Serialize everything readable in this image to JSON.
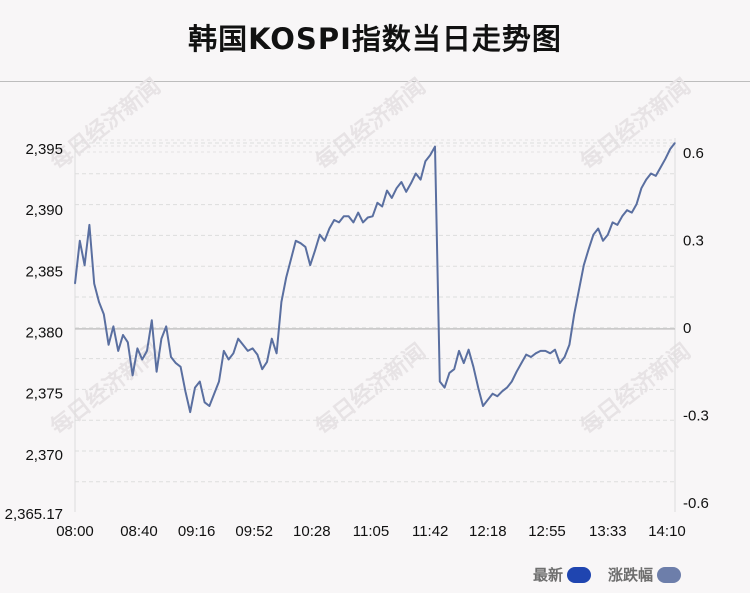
{
  "title": "韩国KOSPI指数当日走势图",
  "watermark": "每日经济新闻",
  "colors": {
    "line": "#5a6fa0",
    "latest_swatch": "#1f45b0",
    "change_swatch": "#6d7eaa",
    "grid": "#dddddd",
    "baseline": "#c4c4c4"
  },
  "legend": [
    {
      "label": "最新",
      "color": "#1f45b0"
    },
    {
      "label": "涨跌幅",
      "color": "#6d7eaa"
    }
  ],
  "chart_data": {
    "type": "line",
    "title": "韩国KOSPI指数当日走势图",
    "x_ticks": [
      "08:00",
      "08:40",
      "09:16",
      "09:52",
      "10:28",
      "11:05",
      "11:42",
      "12:18",
      "12:55",
      "13:33",
      "14:10"
    ],
    "y_ticks": [
      "2,365.17",
      "2,370",
      "2,375",
      "2,380",
      "2,385",
      "2,390",
      "2,395"
    ],
    "y_tick_values": [
      2365.17,
      2370,
      2375,
      2380,
      2385,
      2390,
      2395
    ],
    "y2_ticks": [
      "-0.6",
      "-0.3",
      "0",
      "0.3",
      "0.6"
    ],
    "y2_tick_values": [
      -0.6,
      -0.3,
      0,
      0.3,
      0.6
    ],
    "ylim": [
      2365.17,
      2395.5
    ],
    "y2lim": [
      -0.6,
      0.6
    ],
    "baseline_value": 2380.3,
    "x_range": [
      "08:00",
      "14:15"
    ],
    "series": [
      {
        "x": [
          "08:00",
          "08:03",
          "08:06",
          "08:09",
          "08:12",
          "08:15",
          "08:18",
          "08:21",
          "08:24",
          "08:27",
          "08:30",
          "08:33",
          "08:36",
          "08:39",
          "08:42",
          "08:45",
          "08:48",
          "08:51",
          "08:54",
          "08:57",
          "09:00",
          "09:03",
          "09:06",
          "09:09",
          "09:12",
          "09:15",
          "09:18",
          "09:21",
          "09:24",
          "09:27",
          "09:30",
          "09:33",
          "09:36",
          "09:39",
          "09:42",
          "09:45",
          "09:48",
          "09:51",
          "09:54",
          "09:57",
          "10:00",
          "10:03",
          "10:06",
          "10:09",
          "10:12",
          "10:15",
          "10:18",
          "10:21",
          "10:24",
          "10:27",
          "10:30",
          "10:33",
          "10:36",
          "10:39",
          "10:42",
          "10:45",
          "10:48",
          "10:51",
          "10:54",
          "10:57",
          "11:00",
          "11:03",
          "11:06",
          "11:09",
          "11:12",
          "11:15",
          "11:18",
          "11:21",
          "11:24",
          "11:27",
          "11:30",
          "11:33",
          "11:36",
          "11:39",
          "11:42",
          "11:45",
          "11:48",
          "11:51",
          "11:54",
          "11:57",
          "12:00",
          "12:03",
          "12:06",
          "12:09",
          "12:12",
          "12:15",
          "12:18",
          "12:21",
          "12:24",
          "12:27",
          "12:30",
          "12:33",
          "12:36",
          "12:39",
          "12:42",
          "12:45",
          "12:48",
          "12:51",
          "12:54",
          "12:57",
          "13:00",
          "13:03",
          "13:06",
          "13:09",
          "13:12",
          "13:15",
          "13:18",
          "13:21",
          "13:24",
          "13:27",
          "13:30",
          "13:33",
          "13:36",
          "13:39",
          "13:42",
          "13:45",
          "13:48",
          "13:51",
          "13:54",
          "13:57",
          "14:00",
          "14:03",
          "14:06",
          "14:09",
          "14:12",
          "14:15"
        ],
        "values": [
          2384.0,
          2387.5,
          2385.5,
          2388.8,
          2384.0,
          2382.5,
          2381.5,
          2379.0,
          2380.5,
          2378.5,
          2379.8,
          2379.2,
          2376.5,
          2378.7,
          2377.8,
          2378.5,
          2381.0,
          2376.8,
          2379.5,
          2380.5,
          2378.0,
          2377.5,
          2377.2,
          2375.2,
          2373.5,
          2375.5,
          2376.0,
          2374.3,
          2374.0,
          2375.0,
          2376.0,
          2378.5,
          2377.8,
          2378.3,
          2379.5,
          2379.0,
          2378.5,
          2378.7,
          2378.2,
          2377.0,
          2377.6,
          2379.5,
          2378.3,
          2382.5,
          2384.5,
          2386.0,
          2387.5,
          2387.3,
          2387.0,
          2385.5,
          2386.7,
          2388.0,
          2387.5,
          2388.5,
          2389.2,
          2389.0,
          2389.5,
          2389.5,
          2389.0,
          2389.8,
          2389.0,
          2389.4,
          2389.5,
          2390.6,
          2390.3,
          2391.6,
          2391.0,
          2391.8,
          2392.3,
          2391.5,
          2392.2,
          2393.0,
          2392.5,
          2394.0,
          2394.5,
          2395.2,
          2376.0,
          2375.5,
          2376.7,
          2377.0,
          2378.5,
          2377.5,
          2378.6,
          2377.2,
          2375.5,
          2374.0,
          2374.5,
          2375.0,
          2374.8,
          2375.2,
          2375.5,
          2376.0,
          2376.8,
          2377.5,
          2378.2,
          2378.0,
          2378.3,
          2378.5,
          2378.5,
          2378.3,
          2378.6,
          2377.5,
          2378.0,
          2379.0,
          2381.5,
          2383.5,
          2385.5,
          2386.8,
          2388.0,
          2388.5,
          2387.5,
          2388.0,
          2389.0,
          2388.8,
          2389.5,
          2390.0,
          2389.8,
          2390.5,
          2391.8,
          2392.5,
          2393.0,
          2392.8,
          2393.5,
          2394.2,
          2395.0,
          2395.5
        ]
      }
    ]
  }
}
